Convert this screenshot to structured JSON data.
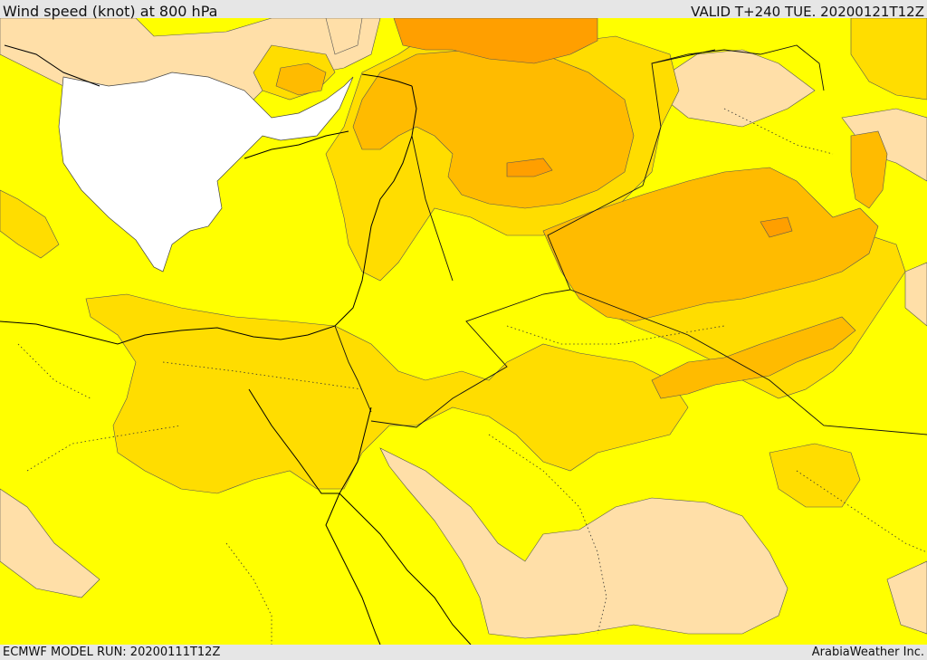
{
  "header": {
    "title": "Wind speed (knot) at 800 hPa",
    "valid": "VALID T+240 TUE. 20200121T12Z"
  },
  "footer": {
    "model_run": "ECMWF MODEL RUN: 20200111T12Z",
    "credit": "ArabiaWeather Inc."
  },
  "colors": {
    "calm": "#ffffff",
    "light": "#ffdfa8",
    "moderate": "#ffff00",
    "fresh": "#ffdd00",
    "strong": "#ffbb00",
    "very_strong": "#ff9f00",
    "border": "#000000",
    "outline": "#444444"
  }
}
